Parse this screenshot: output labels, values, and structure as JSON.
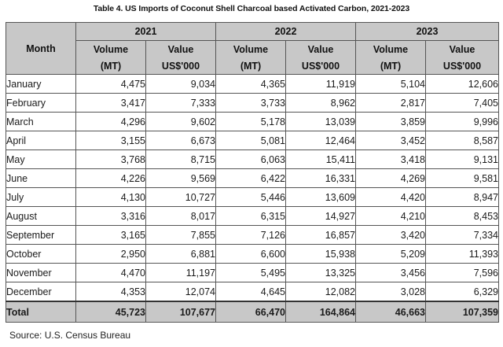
{
  "caption": "Table 4. US Imports of Coconut Shell Charcoal based Activated Carbon, 2021-2023",
  "header": {
    "month": "Month",
    "years": [
      "2021",
      "2022",
      "2023"
    ],
    "col_top": [
      "Volume",
      "Value",
      "Volume",
      "Value",
      "Volume",
      "Value"
    ],
    "col_sub": [
      "(MT)",
      "US$'000",
      "(MT)",
      "US$'000",
      "(MT)",
      "US$'000"
    ]
  },
  "rows": [
    [
      "January",
      "4,475",
      "9,034",
      "4,365",
      "11,919",
      "5,104",
      "12,606"
    ],
    [
      "February",
      "3,417",
      "7,333",
      "3,733",
      "8,962",
      "2,817",
      "7,405"
    ],
    [
      "March",
      "4,296",
      "9,602",
      "5,178",
      "13,039",
      "3,859",
      "9,996"
    ],
    [
      "April",
      "3,155",
      "6,673",
      "5,081",
      "12,464",
      "3,452",
      "8,587"
    ],
    [
      "May",
      "3,768",
      "8,715",
      "6,063",
      "15,411",
      "3,418",
      "9,131"
    ],
    [
      "June",
      "4,226",
      "9,569",
      "6,422",
      "16,331",
      "4,269",
      "9,581"
    ],
    [
      "July",
      "4,130",
      "10,727",
      "5,446",
      "13,609",
      "4,420",
      "8,947"
    ],
    [
      "August",
      "3,316",
      "8,017",
      "6,315",
      "14,927",
      "4,210",
      "8,453"
    ],
    [
      "September",
      "3,165",
      "7,855",
      "7,126",
      "16,857",
      "3,420",
      "7,334"
    ],
    [
      "October",
      "2,950",
      "6,881",
      "6,600",
      "15,938",
      "5,209",
      "11,393"
    ],
    [
      "November",
      "4,470",
      "11,197",
      "5,495",
      "13,325",
      "3,456",
      "7,596"
    ],
    [
      "December",
      "4,353",
      "12,074",
      "4,645",
      "12,082",
      "3,028",
      "6,329"
    ]
  ],
  "total": [
    "Total",
    "45,723",
    "107,677",
    "66,470",
    "164,864",
    "46,663",
    "107,359"
  ],
  "source": "Source: U.S. Census Bureau"
}
